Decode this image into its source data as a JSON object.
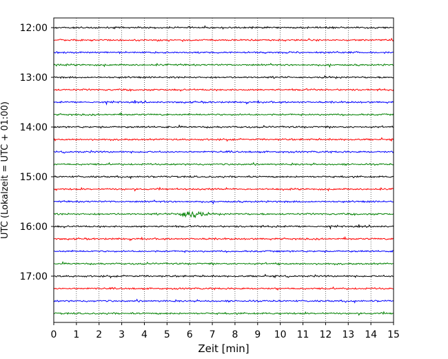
{
  "chart_data": {
    "type": "line",
    "title": "",
    "xlabel": "Zeit  [min]",
    "ylabel": "UTC (Lokalzeit = UTC + 01:00)",
    "xlim": [
      0,
      15
    ],
    "x_ticks": [
      "0",
      "1",
      "2",
      "3",
      "4",
      "5",
      "6",
      "7",
      "8",
      "9",
      "10",
      "11",
      "12",
      "13",
      "14",
      "15"
    ],
    "y_ticks": [
      "12:00",
      "13:00",
      "14:00",
      "15:00",
      "16:00",
      "17:00"
    ],
    "grid": "vertical dotted",
    "trace_colors": [
      "#000000",
      "#ff0000",
      "#0000ff",
      "#008000"
    ],
    "traces": [
      {
        "start": "12:00",
        "color": "#000000"
      },
      {
        "start": "12:15",
        "color": "#ff0000"
      },
      {
        "start": "12:30",
        "color": "#0000ff"
      },
      {
        "start": "12:45",
        "color": "#008000"
      },
      {
        "start": "13:00",
        "color": "#000000"
      },
      {
        "start": "13:15",
        "color": "#ff0000"
      },
      {
        "start": "13:30",
        "color": "#0000ff"
      },
      {
        "start": "13:45",
        "color": "#008000"
      },
      {
        "start": "14:00",
        "color": "#000000"
      },
      {
        "start": "14:15",
        "color": "#ff0000"
      },
      {
        "start": "14:30",
        "color": "#0000ff"
      },
      {
        "start": "14:45",
        "color": "#008000"
      },
      {
        "start": "15:00",
        "color": "#000000"
      },
      {
        "start": "15:15",
        "color": "#ff0000"
      },
      {
        "start": "15:30",
        "color": "#0000ff"
      },
      {
        "start": "15:45",
        "color": "#008000",
        "event_minutes": [
          5.3,
          6.8
        ]
      },
      {
        "start": "16:00",
        "color": "#000000"
      },
      {
        "start": "16:15",
        "color": "#ff0000"
      },
      {
        "start": "16:30",
        "color": "#0000ff"
      },
      {
        "start": "16:45",
        "color": "#008000"
      },
      {
        "start": "17:00",
        "color": "#000000"
      },
      {
        "start": "17:15",
        "color": "#ff0000"
      },
      {
        "start": "17:30",
        "color": "#0000ff"
      },
      {
        "start": "17:45",
        "color": "#008000"
      }
    ]
  }
}
